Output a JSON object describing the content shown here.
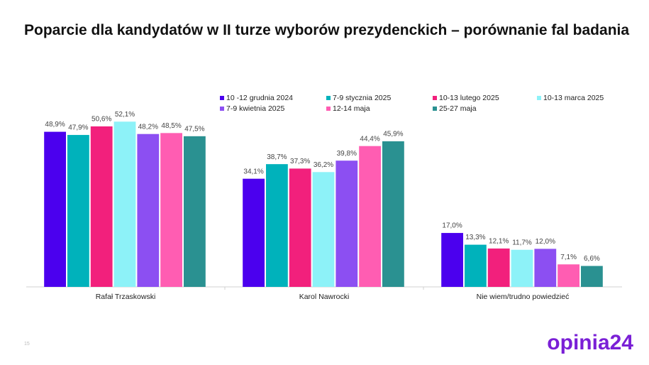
{
  "chart_data": {
    "type": "bar",
    "title": "Poparcie dla kandydatów w II turze wyborów prezydenckich – porównanie fal badania",
    "categories": [
      "Rafał Trzaskowski",
      "Karol Nawrocki",
      "Nie wiem/trudno powiedzieć"
    ],
    "ylim": [
      0,
      60
    ],
    "series": [
      {
        "name": "10 -12 grudnia 2024",
        "color": "#4b00ee",
        "values": [
          48.9,
          34.1,
          17
        ],
        "value_labels": [
          "48,9%",
          "34,1%",
          "17,0%"
        ]
      },
      {
        "name": "7-9 stycznia 2025",
        "color": "#00b2bb",
        "values": [
          47.9,
          38.7,
          13.3
        ],
        "value_labels": [
          "47,9%",
          "38,7%",
          "13,3%"
        ]
      },
      {
        "name": "10-13 lutego 2025",
        "color": "#f2207c",
        "values": [
          50.6,
          37.3,
          12.1
        ],
        "value_labels": [
          "50,6%",
          "37,3%",
          "12,1%"
        ]
      },
      {
        "name": "10-13 marca 2025",
        "color": "#8df2f8",
        "values": [
          52.1,
          36.2,
          11.7
        ],
        "value_labels": [
          "52,1%",
          "36,2%",
          "11,7%"
        ]
      },
      {
        "name": "7-9 kwietnia 2025",
        "color": "#8c4ff2",
        "values": [
          48.2,
          39.8,
          12
        ],
        "value_labels": [
          "48,2%",
          "39,8%",
          "12,0%"
        ]
      },
      {
        "name": "12-14 maja",
        "color": "#ff5db2",
        "values": [
          48.5,
          44.4,
          7.1
        ],
        "value_labels": [
          "48,5%",
          "44,4%",
          "7,1%"
        ]
      },
      {
        "name": "25-27 maja",
        "color": "#2a9191",
        "values": [
          47.5,
          45.9,
          6.6
        ],
        "value_labels": [
          "47,5%",
          "45,9%",
          "6,6%"
        ]
      }
    ]
  },
  "page_number": "15",
  "logo": "opinia24"
}
